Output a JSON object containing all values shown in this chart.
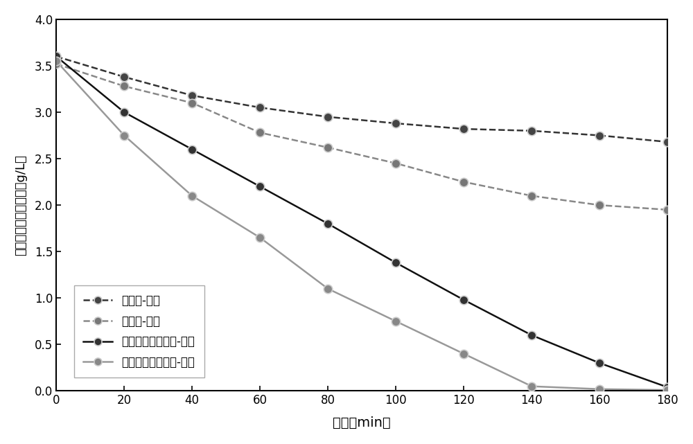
{
  "x": [
    0,
    20,
    40,
    60,
    80,
    100,
    120,
    140,
    160,
    180
  ],
  "series": [
    {
      "label": "布气盘-空气",
      "line_color": "#333333",
      "marker_color": "#444444",
      "linestyle": "--",
      "marker": "o",
      "values": [
        3.6,
        3.38,
        3.18,
        3.05,
        2.95,
        2.88,
        2.82,
        2.8,
        2.75,
        2.68
      ]
    },
    {
      "label": "布气盘-氧气",
      "line_color": "#888888",
      "marker_color": "#777777",
      "linestyle": "--",
      "marker": "o",
      "values": [
        3.52,
        3.28,
        3.1,
        2.78,
        2.62,
        2.45,
        2.25,
        2.1,
        2.0,
        1.95
      ]
    },
    {
      "label": "溶气泵微泡发生器-空气",
      "line_color": "#111111",
      "marker_color": "#333333",
      "linestyle": "-",
      "marker": "o",
      "values": [
        3.6,
        3.0,
        2.6,
        2.2,
        1.8,
        1.38,
        0.98,
        0.6,
        0.3,
        0.04
      ]
    },
    {
      "label": "溶气泵微泡发生器-氧气",
      "line_color": "#999999",
      "marker_color": "#888888",
      "linestyle": "-",
      "marker": "o",
      "values": [
        3.55,
        2.75,
        2.1,
        1.65,
        1.1,
        0.75,
        0.4,
        0.05,
        0.02,
        0.01
      ]
    }
  ],
  "xlabel": "时间（min）",
  "ylabel": "溶液中亚铁离子浓度（g/L）",
  "xlim": [
    0,
    180
  ],
  "ylim": [
    0.0,
    4.0
  ],
  "xticks": [
    0,
    20,
    40,
    60,
    80,
    100,
    120,
    140,
    160,
    180
  ],
  "yticks": [
    0.0,
    0.5,
    1.0,
    1.5,
    2.0,
    2.5,
    3.0,
    3.5,
    4.0
  ],
  "legend_loc": "lower left",
  "background_color": "#ffffff",
  "figure_color": "#ffffff"
}
